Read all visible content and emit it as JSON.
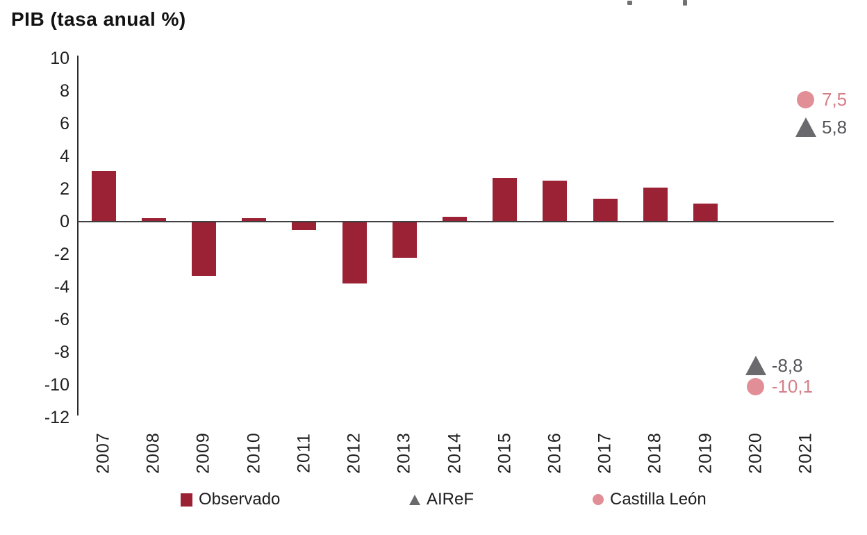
{
  "chart_data": {
    "type": "bar",
    "title": "PIB (tasa anual %)",
    "xlabel": "",
    "ylabel": "",
    "ylim": [
      -12,
      10
    ],
    "ytick_step": 2,
    "yticks": [
      10,
      8,
      6,
      4,
      2,
      0,
      -2,
      -4,
      -6,
      -8,
      -10,
      -12
    ],
    "grid": false,
    "legend_position": "bottom",
    "categories": [
      "2007",
      "2008",
      "2009",
      "2010",
      "2011",
      "2012",
      "2013",
      "2014",
      "2015",
      "2016",
      "2017",
      "2018",
      "2019",
      "2020",
      "2021"
    ],
    "series": [
      {
        "name": "Observado",
        "type": "bar",
        "marker": "square",
        "color": "#9A2234",
        "values": [
          3.1,
          0.2,
          -3.3,
          0.2,
          -0.5,
          -3.8,
          -2.2,
          0.3,
          2.7,
          2.5,
          1.4,
          2.1,
          1.1,
          null,
          null
        ]
      },
      {
        "name": "AIReF",
        "type": "scatter",
        "marker": "triangle",
        "color": "#6A6A6E",
        "label_color": "#55565A",
        "values": [
          null,
          null,
          null,
          null,
          null,
          null,
          null,
          null,
          null,
          null,
          null,
          null,
          null,
          -8.8,
          5.8
        ],
        "value_labels": [
          null,
          null,
          null,
          null,
          null,
          null,
          null,
          null,
          null,
          null,
          null,
          null,
          null,
          "-8,8",
          "5,8"
        ]
      },
      {
        "name": "Castilla León",
        "type": "scatter",
        "marker": "circle",
        "color": "#E18E97",
        "label_color": "#D67E88",
        "values": [
          null,
          null,
          null,
          null,
          null,
          null,
          null,
          null,
          null,
          null,
          null,
          null,
          null,
          -10.1,
          7.5
        ],
        "value_labels": [
          null,
          null,
          null,
          null,
          null,
          null,
          null,
          null,
          null,
          null,
          null,
          null,
          null,
          "-10,1",
          "7,5"
        ]
      }
    ]
  },
  "colors": {
    "bar_red": "#9A2234",
    "forecast_gray": "#6A6A6E",
    "forecast_pink": "#E18E97",
    "gray_text": "#55565A",
    "pink_text": "#D67E88",
    "axis": "#2B2B2B",
    "tick_text": "#1D1D1F"
  }
}
